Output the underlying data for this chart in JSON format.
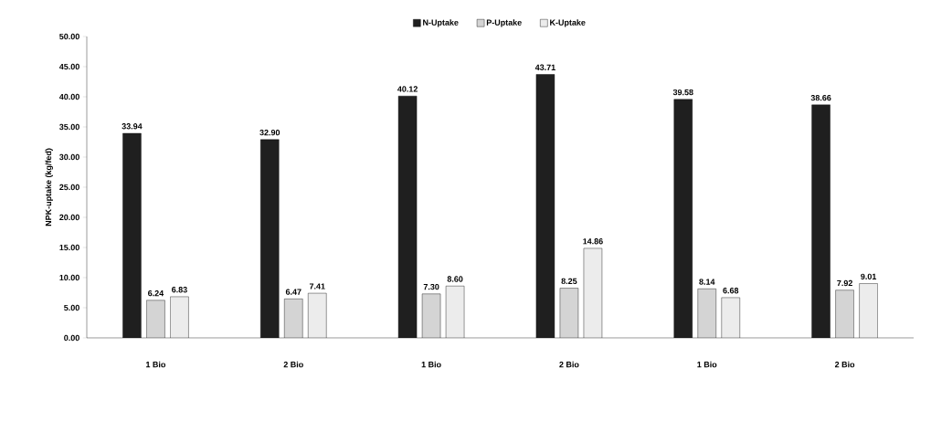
{
  "chart_data": {
    "type": "bar",
    "ylabel": "NPK-uptake (kg/fed)",
    "categories": [
      "1 Bio",
      "2 Bio",
      "1 Bio",
      "2 Bio",
      "1 Bio",
      "2 Bio"
    ],
    "series": [
      {
        "name": "N-Uptake",
        "color": "#1f1f1f",
        "values": [
          33.94,
          32.9,
          40.12,
          43.71,
          39.58,
          38.66
        ],
        "value_labels": [
          "33.94",
          "32.90",
          "40.12",
          "43.71",
          "39.58",
          "38.66"
        ]
      },
      {
        "name": "P-Uptake",
        "color": "#d4d4d4",
        "values": [
          6.24,
          6.47,
          7.3,
          8.25,
          8.14,
          7.92
        ],
        "value_labels": [
          "6.24",
          "6.47",
          "7.30",
          "8.25",
          "8.14",
          "7.92"
        ]
      },
      {
        "name": "K-Uptake",
        "color": "#ececec",
        "values": [
          6.83,
          7.41,
          8.6,
          14.86,
          6.68,
          9.01
        ],
        "value_labels": [
          "6.83",
          "7.41",
          "8.60",
          "14.86",
          "6.68",
          "9.01"
        ]
      }
    ],
    "ylim": [
      0,
      50
    ],
    "yticks": [
      {
        "value": 0,
        "label": "0.00"
      },
      {
        "value": 5,
        "label": "5.00"
      },
      {
        "value": 10,
        "label": "10.00"
      },
      {
        "value": 15,
        "label": "15.00"
      },
      {
        "value": 20,
        "label": "20.00"
      },
      {
        "value": 25,
        "label": "25.00"
      },
      {
        "value": 30,
        "label": "30.00"
      },
      {
        "value": 35,
        "label": "35.00"
      },
      {
        "value": 40,
        "label": "40.00"
      },
      {
        "value": 45,
        "label": "45.00"
      },
      {
        "value": 50,
        "label": "50.00"
      }
    ],
    "legend": "top"
  }
}
